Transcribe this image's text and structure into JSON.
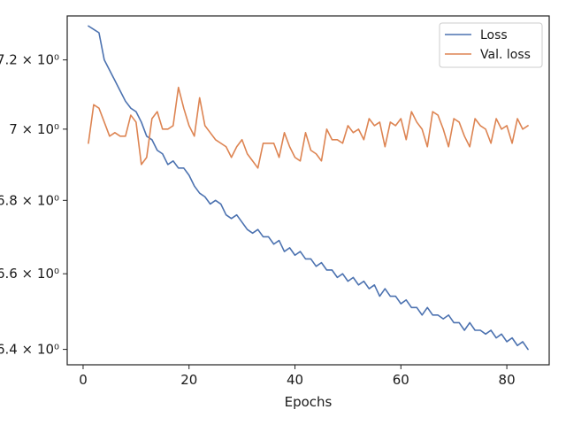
{
  "chart_data": {
    "type": "line",
    "title": "",
    "xlabel": "Epochs",
    "ylabel": "",
    "xlim": [
      -3,
      88
    ],
    "ylim": [
      6.36,
      7.33
    ],
    "yscale": "log",
    "grid": false,
    "legend_position": "top-right",
    "x_ticks": [
      0,
      20,
      40,
      60,
      80
    ],
    "x_tick_labels": [
      "0",
      "20",
      "40",
      "60",
      "80"
    ],
    "y_ticks": [
      6.4,
      6.6,
      6.8,
      7.0,
      7.2
    ],
    "y_tick_labels": [
      "6.4 × 10⁰",
      "6.6 × 10⁰",
      "6.8 × 10⁰",
      "7 × 10⁰",
      "7.2 × 10⁰"
    ],
    "x": [
      1,
      2,
      3,
      4,
      5,
      6,
      7,
      8,
      9,
      10,
      11,
      12,
      13,
      14,
      15,
      16,
      17,
      18,
      19,
      20,
      21,
      22,
      23,
      24,
      25,
      26,
      27,
      28,
      29,
      30,
      31,
      32,
      33,
      34,
      35,
      36,
      37,
      38,
      39,
      40,
      41,
      42,
      43,
      44,
      45,
      46,
      47,
      48,
      49,
      50,
      51,
      52,
      53,
      54,
      55,
      56,
      57,
      58,
      59,
      60,
      61,
      62,
      63,
      64,
      65,
      66,
      67,
      68,
      69,
      70,
      71,
      72,
      73,
      74,
      75,
      76,
      77,
      78,
      79,
      80,
      81,
      82,
      83,
      84
    ],
    "series": [
      {
        "name": "Loss",
        "color": "#4c72b0",
        "values": [
          7.3,
          7.29,
          7.28,
          7.2,
          7.17,
          7.14,
          7.11,
          7.08,
          7.06,
          7.05,
          7.02,
          6.98,
          6.97,
          6.94,
          6.93,
          6.9,
          6.91,
          6.89,
          6.89,
          6.87,
          6.84,
          6.82,
          6.81,
          6.79,
          6.8,
          6.79,
          6.76,
          6.75,
          6.76,
          6.74,
          6.72,
          6.71,
          6.72,
          6.7,
          6.7,
          6.68,
          6.69,
          6.66,
          6.67,
          6.65,
          6.66,
          6.64,
          6.64,
          6.62,
          6.63,
          6.61,
          6.61,
          6.59,
          6.6,
          6.58,
          6.59,
          6.57,
          6.58,
          6.56,
          6.57,
          6.54,
          6.56,
          6.54,
          6.54,
          6.52,
          6.53,
          6.51,
          6.51,
          6.49,
          6.51,
          6.49,
          6.49,
          6.48,
          6.49,
          6.47,
          6.47,
          6.45,
          6.47,
          6.45,
          6.45,
          6.44,
          6.45,
          6.43,
          6.44,
          6.42,
          6.43,
          6.41,
          6.42,
          6.4
        ]
      },
      {
        "name": "Val. loss",
        "color": "#dd8452",
        "values": [
          6.96,
          7.07,
          7.06,
          7.02,
          6.98,
          6.99,
          6.98,
          6.98,
          7.04,
          7.02,
          6.9,
          6.92,
          7.03,
          7.05,
          7.0,
          7.0,
          7.01,
          7.12,
          7.06,
          7.01,
          6.98,
          7.09,
          7.01,
          6.99,
          6.97,
          6.96,
          6.95,
          6.92,
          6.95,
          6.97,
          6.93,
          6.91,
          6.89,
          6.96,
          6.96,
          6.96,
          6.92,
          6.99,
          6.95,
          6.92,
          6.91,
          6.99,
          6.94,
          6.93,
          6.91,
          7.0,
          6.97,
          6.97,
          6.96,
          7.01,
          6.99,
          7.0,
          6.97,
          7.03,
          7.01,
          7.02,
          6.95,
          7.02,
          7.01,
          7.03,
          6.97,
          7.05,
          7.02,
          7.0,
          6.95,
          7.05,
          7.04,
          7.0,
          6.95,
          7.03,
          7.02,
          6.98,
          6.95,
          7.03,
          7.01,
          7.0,
          6.96,
          7.03,
          7.0,
          7.01,
          6.96,
          7.03,
          7.0,
          7.01
        ]
      }
    ]
  }
}
